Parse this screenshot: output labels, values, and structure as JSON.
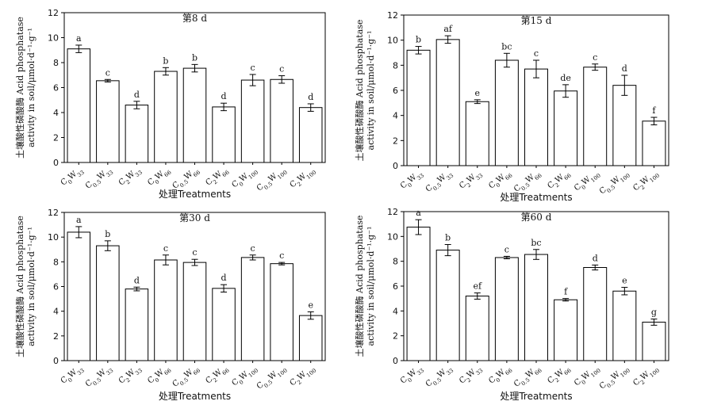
{
  "figure": {
    "xlabel": "处理Treatments",
    "ylabel_line1": "土壤酸性磷酸酶 Acid phosphatase",
    "ylabel_line2": "activity in soil/μmol·d⁻¹·g⁻¹"
  },
  "chart_data": [
    {
      "type": "bar",
      "title": "第8 d",
      "xlabel": "处理Treatments",
      "ylabel": "土壤酸性磷酸酶 Acid phosphatase activity in soil/μmol·d⁻¹·g⁻¹",
      "ylim": [
        0,
        12
      ],
      "yticks": [
        0,
        2,
        4,
        6,
        8,
        10,
        12
      ],
      "grid": false,
      "categories": [
        "C0W33",
        "C0.5W33",
        "C2W33",
        "C0W66",
        "C0.5W66",
        "C2W66",
        "C0W100",
        "C0.5W100",
        "C2W100"
      ],
      "values": [
        9.1,
        6.55,
        4.6,
        7.3,
        7.55,
        4.45,
        6.6,
        6.65,
        4.4
      ],
      "errors": [
        0.3,
        0.1,
        0.3,
        0.3,
        0.3,
        0.3,
        0.45,
        0.3,
        0.3
      ],
      "letters": [
        "a",
        "c",
        "d",
        "b",
        "b",
        "d",
        "c",
        "c",
        "d"
      ]
    },
    {
      "type": "bar",
      "title": "第15 d",
      "xlabel": "处理Treatments",
      "ylabel": "土壤酸性磷酸酶 Acid phosphatase activity in soil/μmol·d⁻¹·g⁻¹",
      "ylim": [
        0,
        12
      ],
      "yticks": [
        0,
        2,
        4,
        6,
        8,
        10,
        12
      ],
      "grid": false,
      "categories": [
        "C0W33",
        "C0.5W33",
        "C2W33",
        "C0W66",
        "C0.5W66",
        "C2W66",
        "C0W100",
        "C0.5W100",
        "C2W100"
      ],
      "values": [
        9.2,
        10.05,
        5.1,
        8.4,
        7.7,
        5.95,
        7.85,
        6.4,
        3.55
      ],
      "errors": [
        0.3,
        0.3,
        0.15,
        0.55,
        0.7,
        0.5,
        0.25,
        0.8,
        0.3
      ],
      "letters": [
        "b",
        "af",
        "e",
        "bc",
        "c",
        "de",
        "c",
        "d",
        "f"
      ]
    },
    {
      "type": "bar",
      "title": "第30 d",
      "xlabel": "处理Treatments",
      "ylabel": "土壤酸性磷酸酶 Acid phosphatase activity in soil/μmol·d⁻¹·g⁻¹",
      "ylim": [
        0,
        12
      ],
      "yticks": [
        0,
        2,
        4,
        6,
        8,
        10,
        12
      ],
      "grid": false,
      "categories": [
        "C0W33",
        "C0.5W33",
        "C2W33",
        "C0W66",
        "C0.5W66",
        "C2W66",
        "C0W100",
        "C0.5W100",
        "C2W100"
      ],
      "values": [
        10.4,
        9.3,
        5.8,
        8.15,
        7.95,
        5.85,
        8.35,
        7.85,
        3.65
      ],
      "errors": [
        0.45,
        0.4,
        0.15,
        0.4,
        0.25,
        0.3,
        0.2,
        0.1,
        0.3
      ],
      "letters": [
        "a",
        "b",
        "d",
        "c",
        "c",
        "d",
        "c",
        "c",
        "e"
      ]
    },
    {
      "type": "bar",
      "title": "第60 d",
      "xlabel": "处理Treatments",
      "ylabel": "土壤酸性磷酸酶 Acid phosphatase activity in soil/μmol·d⁻¹·g⁻¹",
      "ylim": [
        0,
        12
      ],
      "yticks": [
        0,
        2,
        4,
        6,
        8,
        10,
        12
      ],
      "grid": false,
      "categories": [
        "C0W33",
        "C0.5W33",
        "C2W33",
        "C0W66",
        "C0.5W66",
        "C2W66",
        "C0W100",
        "C0.5W100",
        "C2W100"
      ],
      "values": [
        10.75,
        8.9,
        5.2,
        8.3,
        8.55,
        4.9,
        7.5,
        5.6,
        3.1
      ],
      "errors": [
        0.6,
        0.45,
        0.25,
        0.1,
        0.4,
        0.1,
        0.2,
        0.3,
        0.25
      ],
      "letters": [
        "a",
        "b",
        "ef",
        "c",
        "bc",
        "f",
        "d",
        "e",
        "g"
      ]
    }
  ]
}
